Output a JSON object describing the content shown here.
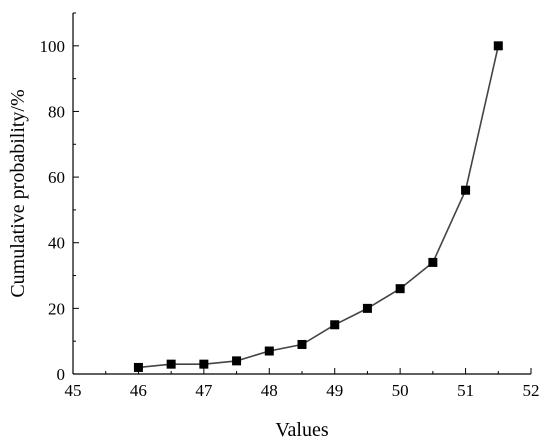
{
  "chart_data": {
    "type": "line",
    "xlabel": "Values",
    "ylabel": "Cumulative probability/%",
    "xlim": [
      45,
      52
    ],
    "ylim": [
      0,
      110
    ],
    "xticks": [
      45,
      46,
      47,
      48,
      49,
      50,
      51,
      52
    ],
    "yticks": [
      0,
      20,
      40,
      60,
      80,
      100
    ],
    "grid": false,
    "marker": "square",
    "series": [
      {
        "x": [
          46,
          46.5,
          47,
          47.5,
          48,
          48.5,
          49,
          49.5,
          50,
          50.5,
          51,
          51.5
        ],
        "y": [
          2,
          3,
          3,
          4,
          7,
          9,
          15,
          20,
          26,
          34,
          56,
          100
        ]
      }
    ]
  }
}
